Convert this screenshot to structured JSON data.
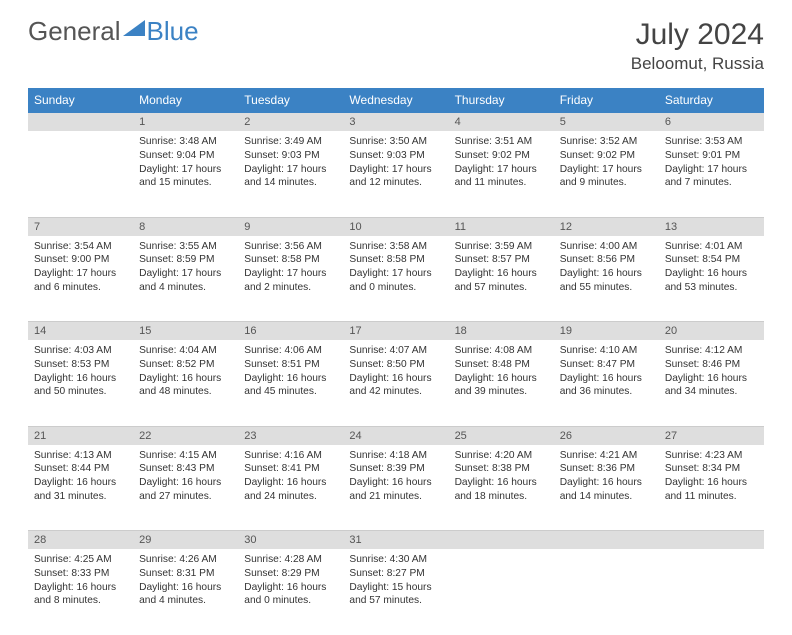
{
  "brand": {
    "part1": "General",
    "part2": "Blue"
  },
  "title": "July 2024",
  "location": "Beloomut, Russia",
  "colors": {
    "header_bg": "#3b82c4",
    "header_fg": "#ffffff",
    "daynum_bg": "#dedede",
    "border": "#3b82c4",
    "text": "#333333"
  },
  "weekdays": [
    "Sunday",
    "Monday",
    "Tuesday",
    "Wednesday",
    "Thursday",
    "Friday",
    "Saturday"
  ],
  "weeks": [
    {
      "nums": [
        "",
        "1",
        "2",
        "3",
        "4",
        "5",
        "6"
      ],
      "sunrise": [
        "",
        "Sunrise: 3:48 AM",
        "Sunrise: 3:49 AM",
        "Sunrise: 3:50 AM",
        "Sunrise: 3:51 AM",
        "Sunrise: 3:52 AM",
        "Sunrise: 3:53 AM"
      ],
      "sunset": [
        "",
        "Sunset: 9:04 PM",
        "Sunset: 9:03 PM",
        "Sunset: 9:03 PM",
        "Sunset: 9:02 PM",
        "Sunset: 9:02 PM",
        "Sunset: 9:01 PM"
      ],
      "daylight": [
        "",
        "Daylight: 17 hours and 15 minutes.",
        "Daylight: 17 hours and 14 minutes.",
        "Daylight: 17 hours and 12 minutes.",
        "Daylight: 17 hours and 11 minutes.",
        "Daylight: 17 hours and 9 minutes.",
        "Daylight: 17 hours and 7 minutes."
      ]
    },
    {
      "nums": [
        "7",
        "8",
        "9",
        "10",
        "11",
        "12",
        "13"
      ],
      "sunrise": [
        "Sunrise: 3:54 AM",
        "Sunrise: 3:55 AM",
        "Sunrise: 3:56 AM",
        "Sunrise: 3:58 AM",
        "Sunrise: 3:59 AM",
        "Sunrise: 4:00 AM",
        "Sunrise: 4:01 AM"
      ],
      "sunset": [
        "Sunset: 9:00 PM",
        "Sunset: 8:59 PM",
        "Sunset: 8:58 PM",
        "Sunset: 8:58 PM",
        "Sunset: 8:57 PM",
        "Sunset: 8:56 PM",
        "Sunset: 8:54 PM"
      ],
      "daylight": [
        "Daylight: 17 hours and 6 minutes.",
        "Daylight: 17 hours and 4 minutes.",
        "Daylight: 17 hours and 2 minutes.",
        "Daylight: 17 hours and 0 minutes.",
        "Daylight: 16 hours and 57 minutes.",
        "Daylight: 16 hours and 55 minutes.",
        "Daylight: 16 hours and 53 minutes."
      ]
    },
    {
      "nums": [
        "14",
        "15",
        "16",
        "17",
        "18",
        "19",
        "20"
      ],
      "sunrise": [
        "Sunrise: 4:03 AM",
        "Sunrise: 4:04 AM",
        "Sunrise: 4:06 AM",
        "Sunrise: 4:07 AM",
        "Sunrise: 4:08 AM",
        "Sunrise: 4:10 AM",
        "Sunrise: 4:12 AM"
      ],
      "sunset": [
        "Sunset: 8:53 PM",
        "Sunset: 8:52 PM",
        "Sunset: 8:51 PM",
        "Sunset: 8:50 PM",
        "Sunset: 8:48 PM",
        "Sunset: 8:47 PM",
        "Sunset: 8:46 PM"
      ],
      "daylight": [
        "Daylight: 16 hours and 50 minutes.",
        "Daylight: 16 hours and 48 minutes.",
        "Daylight: 16 hours and 45 minutes.",
        "Daylight: 16 hours and 42 minutes.",
        "Daylight: 16 hours and 39 minutes.",
        "Daylight: 16 hours and 36 minutes.",
        "Daylight: 16 hours and 34 minutes."
      ]
    },
    {
      "nums": [
        "21",
        "22",
        "23",
        "24",
        "25",
        "26",
        "27"
      ],
      "sunrise": [
        "Sunrise: 4:13 AM",
        "Sunrise: 4:15 AM",
        "Sunrise: 4:16 AM",
        "Sunrise: 4:18 AM",
        "Sunrise: 4:20 AM",
        "Sunrise: 4:21 AM",
        "Sunrise: 4:23 AM"
      ],
      "sunset": [
        "Sunset: 8:44 PM",
        "Sunset: 8:43 PM",
        "Sunset: 8:41 PM",
        "Sunset: 8:39 PM",
        "Sunset: 8:38 PM",
        "Sunset: 8:36 PM",
        "Sunset: 8:34 PM"
      ],
      "daylight": [
        "Daylight: 16 hours and 31 minutes.",
        "Daylight: 16 hours and 27 minutes.",
        "Daylight: 16 hours and 24 minutes.",
        "Daylight: 16 hours and 21 minutes.",
        "Daylight: 16 hours and 18 minutes.",
        "Daylight: 16 hours and 14 minutes.",
        "Daylight: 16 hours and 11 minutes."
      ]
    },
    {
      "nums": [
        "28",
        "29",
        "30",
        "31",
        "",
        "",
        ""
      ],
      "sunrise": [
        "Sunrise: 4:25 AM",
        "Sunrise: 4:26 AM",
        "Sunrise: 4:28 AM",
        "Sunrise: 4:30 AM",
        "",
        "",
        ""
      ],
      "sunset": [
        "Sunset: 8:33 PM",
        "Sunset: 8:31 PM",
        "Sunset: 8:29 PM",
        "Sunset: 8:27 PM",
        "",
        "",
        ""
      ],
      "daylight": [
        "Daylight: 16 hours and 8 minutes.",
        "Daylight: 16 hours and 4 minutes.",
        "Daylight: 16 hours and 0 minutes.",
        "Daylight: 15 hours and 57 minutes.",
        "",
        "",
        ""
      ]
    }
  ]
}
